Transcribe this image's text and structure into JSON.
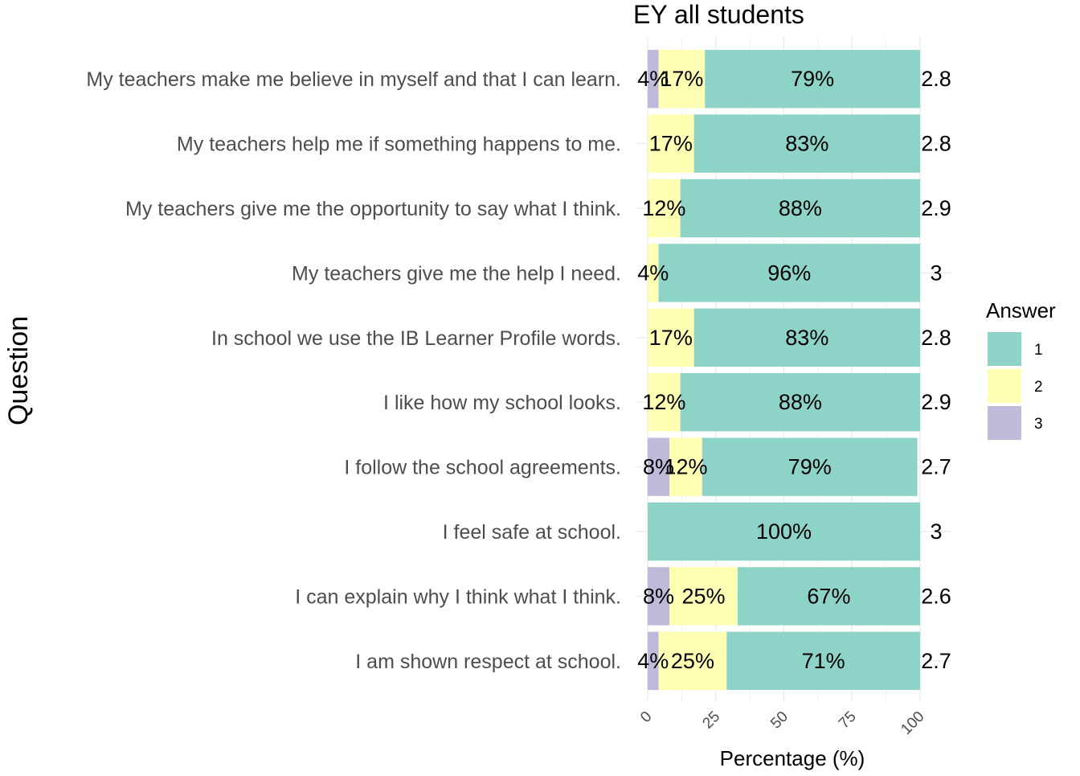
{
  "chart_data": {
    "type": "bar",
    "orientation": "horizontal",
    "stacked": true,
    "title": "EY all students",
    "xlabel": "Percentage (%)",
    "ylabel": "Question",
    "xlim": [
      0,
      100
    ],
    "xticks": [
      "0",
      "25",
      "50",
      "75",
      "100"
    ],
    "grid": true,
    "legend": {
      "title": "Answer",
      "position": "right",
      "entries": [
        {
          "label": "1",
          "color": "#8ed3c7"
        },
        {
          "label": "2",
          "color": "#ffffb3"
        },
        {
          "label": "3",
          "color": "#bebada"
        }
      ]
    },
    "categories": [
      "My teachers make me believe in myself and that I can learn.",
      "My teachers help me if something happens to me.",
      "My teachers give me the opportunity to say what I think.",
      "My teachers give me the help I need.",
      "In school we use the IB Learner Profile words.",
      "I like how my school looks.",
      "I follow the school agreements.",
      "I feel safe at school.",
      "I can explain why I think what I think.",
      "I am shown respect at school."
    ],
    "series": [
      {
        "name": "3",
        "color": "#bebada",
        "values": [
          4,
          0,
          0,
          0,
          0,
          0,
          8,
          0,
          8,
          4
        ],
        "labels": [
          "4%",
          "",
          "",
          "",
          "",
          "",
          "8%",
          "",
          "8%",
          "4%"
        ]
      },
      {
        "name": "2",
        "color": "#ffffb3",
        "values": [
          17,
          17,
          12,
          4,
          17,
          12,
          12,
          0,
          25,
          25
        ],
        "labels": [
          "17%",
          "17%",
          "12%",
          "4%",
          "17%",
          "12%",
          "12%",
          "",
          "25%",
          "25%"
        ]
      },
      {
        "name": "1",
        "color": "#8ed3c7",
        "values": [
          79,
          83,
          88,
          96,
          83,
          88,
          79,
          100,
          67,
          71
        ],
        "labels": [
          "79%",
          "83%",
          "88%",
          "96%",
          "83%",
          "88%",
          "79%",
          "100%",
          "67%",
          "71%"
        ]
      }
    ],
    "means": [
      "2.8",
      "2.8",
      "2.9",
      "3",
      "2.8",
      "2.9",
      "2.7",
      "3",
      "2.6",
      "2.7"
    ]
  }
}
